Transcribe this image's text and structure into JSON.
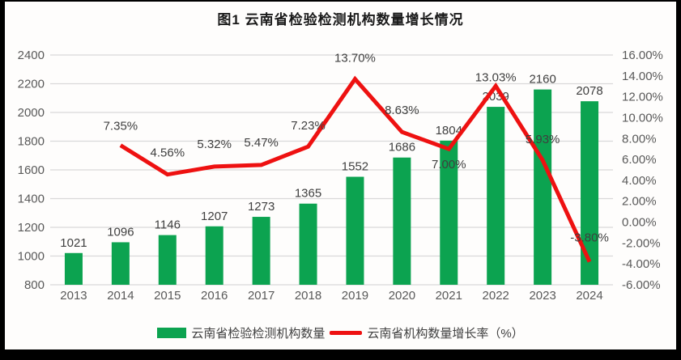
{
  "title": "图1 云南省检验检测机构数量增长情况",
  "legend": {
    "bars_label": "云南省检验检测机构数量",
    "line_label": "云南省机构数量增长率（%）"
  },
  "colors": {
    "bar": "#0ca350",
    "line": "#ee1111",
    "grid": "#d9d9d9",
    "axis_text": "#595959",
    "data_label": "#3f3f3f"
  },
  "chart_data": {
    "type": "combo-bar-line",
    "title": "图1 云南省检验检测机构数量增长情况",
    "categories": [
      "2013",
      "2014",
      "2015",
      "2016",
      "2017",
      "2018",
      "2019",
      "2020",
      "2021",
      "2022",
      "2023",
      "2024"
    ],
    "series": [
      {
        "name": "云南省检验检测机构数量",
        "type": "bar",
        "axis": "left",
        "values": [
          1021,
          1096,
          1146,
          1207,
          1273,
          1365,
          1552,
          1686,
          1804,
          2039,
          2160,
          2078
        ],
        "labels": [
          "1021",
          "1096",
          "1146",
          "1207",
          "1273",
          "1365",
          "1552",
          "1686",
          "1804",
          "2039",
          "2160",
          "2078"
        ]
      },
      {
        "name": "云南省机构数量增长率（%）",
        "type": "line",
        "axis": "right",
        "values": [
          null,
          7.35,
          4.56,
          5.32,
          5.47,
          7.23,
          13.7,
          8.63,
          7.0,
          13.03,
          5.93,
          -3.8
        ],
        "labels": [
          null,
          "7.35%",
          "4.56%",
          "5.32%",
          "5.47%",
          "7.23%",
          "13.70%",
          "8.63%",
          "7.00%",
          "13.03%",
          "5.93%",
          "-3.80%"
        ],
        "label_dy": [
          null,
          -24,
          -27,
          -28,
          -28,
          -26,
          -26,
          -27,
          19,
          -11,
          -26,
          -30
        ]
      }
    ],
    "left_axis": {
      "min": 800,
      "max": 2400,
      "step": 200,
      "ticks": [
        "2400",
        "2200",
        "2000",
        "1800",
        "1600",
        "1400",
        "1200",
        "1000",
        "800"
      ]
    },
    "right_axis": {
      "min": -6,
      "max": 16,
      "step": 2,
      "ticks": [
        "16.00%",
        "14.00%",
        "12.00%",
        "10.00%",
        "8.00%",
        "6.00%",
        "4.00%",
        "2.00%",
        "0.00%",
        "-2.00%",
        "-4.00%",
        "-6.00%"
      ]
    },
    "grid": true,
    "legend_position": "bottom"
  }
}
